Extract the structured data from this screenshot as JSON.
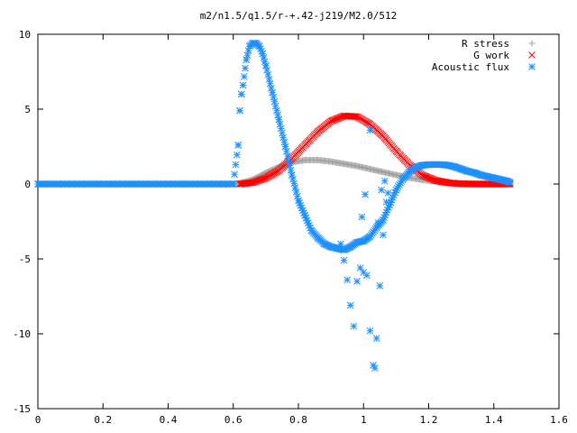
{
  "chart_data": {
    "type": "scatter",
    "title": "m2/n1.5/q1.5/r-+.42-j219/M2.0/512",
    "xlabel": "",
    "ylabel": "",
    "xlim": [
      0,
      1.6
    ],
    "ylim": [
      -15,
      10
    ],
    "x_ticks": [
      0,
      0.2,
      0.4,
      0.6,
      0.8,
      1,
      1.2,
      1.4,
      1.6
    ],
    "x_tick_labels": [
      "0",
      "0.2",
      "0.4",
      "0.6",
      "0.8",
      "1",
      "1.2",
      "1.4",
      "1.6"
    ],
    "y_ticks": [
      -15,
      -10,
      -5,
      0,
      5,
      10
    ],
    "y_tick_labels": [
      "-15",
      "-10",
      "-5",
      "0",
      "5",
      "10"
    ],
    "grid": false,
    "legend_position": "top-right",
    "series": [
      {
        "name": "R stress",
        "marker": "plus",
        "color": "#a0a0a0",
        "x": [
          0.0,
          0.1,
          0.2,
          0.3,
          0.4,
          0.5,
          0.6,
          0.62,
          0.66,
          0.7,
          0.74,
          0.78,
          0.82,
          0.86,
          0.9,
          0.94,
          0.98,
          1.02,
          1.06,
          1.1,
          1.14,
          1.18,
          1.22,
          1.26,
          1.3,
          1.34,
          1.38,
          1.42,
          1.45
        ],
        "y": [
          0,
          0,
          0,
          0,
          0,
          0,
          0,
          0.05,
          0.3,
          0.75,
          1.15,
          1.45,
          1.6,
          1.6,
          1.5,
          1.35,
          1.2,
          1.0,
          0.8,
          0.6,
          0.42,
          0.28,
          0.16,
          0.08,
          0.03,
          0.01,
          0,
          0,
          0
        ]
      },
      {
        "name": "G work",
        "marker": "cross",
        "color": "#ff0000",
        "x": [
          0.62,
          0.66,
          0.7,
          0.74,
          0.78,
          0.82,
          0.86,
          0.9,
          0.94,
          0.98,
          1.02,
          1.06,
          1.1,
          1.14,
          1.18,
          1.22,
          1.26,
          1.3,
          1.34,
          1.38,
          1.42,
          1.45
        ],
        "y": [
          0,
          0.1,
          0.4,
          0.9,
          1.7,
          2.6,
          3.5,
          4.2,
          4.55,
          4.5,
          4.0,
          3.2,
          2.2,
          1.3,
          0.6,
          0.25,
          0.08,
          0.02,
          0,
          0,
          0,
          0
        ]
      },
      {
        "name": "Acoustic flux",
        "marker": "star",
        "color": "#1e90ff",
        "x": [
          0.0,
          0.1,
          0.2,
          0.3,
          0.4,
          0.5,
          0.6,
          0.615,
          0.62,
          0.625,
          0.63,
          0.64,
          0.65,
          0.66,
          0.67,
          0.68,
          0.69,
          0.7,
          0.72,
          0.74,
          0.76,
          0.78,
          0.8,
          0.82,
          0.84,
          0.86,
          0.88,
          0.9,
          0.92,
          0.94,
          0.96,
          0.98,
          1.0,
          1.02,
          1.04,
          1.06,
          1.08,
          1.1,
          1.12,
          1.14,
          1.16,
          1.18,
          1.2,
          1.22,
          1.24,
          1.26,
          1.28,
          1.3,
          1.32,
          1.34,
          1.36,
          1.38,
          1.4,
          1.42,
          1.44,
          1.45,
          0.93,
          0.94,
          0.95,
          0.96,
          0.97,
          0.98,
          0.99,
          1.0,
          1.01,
          1.02,
          1.03,
          1.035,
          1.04,
          1.05,
          1.06,
          1.07,
          0.995,
          1.005,
          1.02,
          1.045,
          1.055,
          1.065,
          1.075
        ],
        "y": [
          0,
          0,
          0,
          0,
          0,
          0,
          0,
          2.6,
          4.9,
          6.0,
          6.6,
          8.3,
          9.2,
          9.4,
          9.4,
          9.2,
          8.7,
          7.9,
          6.1,
          4.3,
          2.5,
          0.6,
          -1.1,
          -2.1,
          -3.1,
          -3.6,
          -4.0,
          -4.2,
          -4.3,
          -4.4,
          -4.2,
          -3.9,
          -3.8,
          -3.5,
          -2.9,
          -2.4,
          -1.4,
          -0.4,
          0.3,
          0.8,
          1.1,
          1.25,
          1.3,
          1.3,
          1.3,
          1.25,
          1.15,
          1.0,
          0.85,
          0.75,
          0.6,
          0.5,
          0.4,
          0.3,
          0.2,
          0.1,
          -4.0,
          -5.1,
          -6.4,
          -8.1,
          -9.5,
          -6.5,
          -5.6,
          -5.9,
          -6.1,
          -9.8,
          -12.1,
          -12.3,
          -10.3,
          -6.8,
          -3.4,
          -1.2,
          -2.2,
          -0.7,
          3.6,
          -2.6,
          -0.4,
          0.2,
          -0.6
        ]
      }
    ]
  }
}
